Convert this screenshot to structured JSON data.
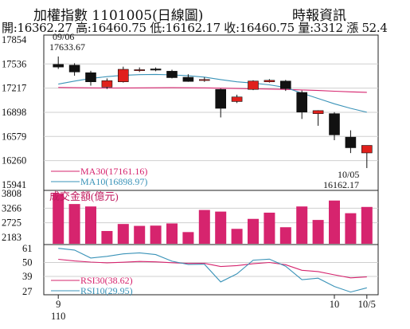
{
  "header": {
    "title": "加權指數 1101005(日線圖)",
    "source": "時報資訊",
    "summary": "開:16362.27 高:16460.75 低:16162.17 收:16460.75 量:3312 漲 52.4"
  },
  "chart_data": [
    {
      "type": "candlestick",
      "y_ticks": [
        "17854",
        "17536",
        "17217",
        "16898",
        "16579",
        "16260",
        "15941"
      ],
      "ylim": [
        15941,
        17854
      ],
      "grid": true,
      "annotations": [
        {
          "text": "09/06",
          "value": "17633.67"
        },
        {
          "text": "10/05",
          "value": "16162.17"
        }
      ],
      "candles": [
        {
          "o": 17530,
          "h": 17634,
          "l": 17470,
          "c": 17495
        },
        {
          "o": 17520,
          "h": 17545,
          "l": 17380,
          "c": 17430
        },
        {
          "o": 17420,
          "h": 17445,
          "l": 17250,
          "c": 17300
        },
        {
          "o": 17230,
          "h": 17345,
          "l": 17205,
          "c": 17315
        },
        {
          "o": 17300,
          "h": 17500,
          "l": 17290,
          "c": 17465
        },
        {
          "o": 17455,
          "h": 17490,
          "l": 17430,
          "c": 17460
        },
        {
          "o": 17470,
          "h": 17490,
          "l": 17440,
          "c": 17455
        },
        {
          "o": 17440,
          "h": 17460,
          "l": 17345,
          "c": 17355
        },
        {
          "o": 17360,
          "h": 17400,
          "l": 17300,
          "c": 17305
        },
        {
          "o": 17330,
          "h": 17360,
          "l": 17300,
          "c": 17330
        },
        {
          "o": 17200,
          "h": 17210,
          "l": 16830,
          "c": 16950
        },
        {
          "o": 17040,
          "h": 17130,
          "l": 17020,
          "c": 17100
        },
        {
          "o": 17200,
          "h": 17320,
          "l": 17190,
          "c": 17310
        },
        {
          "o": 17300,
          "h": 17335,
          "l": 17290,
          "c": 17320
        },
        {
          "o": 17310,
          "h": 17325,
          "l": 17180,
          "c": 17210
        },
        {
          "o": 17160,
          "h": 17185,
          "l": 16810,
          "c": 16900
        },
        {
          "o": 16880,
          "h": 16925,
          "l": 16720,
          "c": 16920
        },
        {
          "o": 16880,
          "h": 16900,
          "l": 16530,
          "c": 16600
        },
        {
          "o": 16570,
          "h": 16660,
          "l": 16360,
          "c": 16430
        },
        {
          "o": 16362,
          "h": 16461,
          "l": 16162,
          "c": 16461
        }
      ],
      "series": [
        {
          "name": "MA30",
          "label": "MA30(17161.16)",
          "color": "#d6246e",
          "values": [
            17225,
            17222,
            17220,
            17218,
            17219,
            17220,
            17221,
            17222,
            17221,
            17220,
            17216,
            17212,
            17208,
            17204,
            17200,
            17193,
            17185,
            17176,
            17168,
            17161
          ]
        },
        {
          "name": "MA10",
          "label": "MA10(16898.97)",
          "color": "#3a93b8",
          "values": [
            17270,
            17310,
            17345,
            17368,
            17385,
            17395,
            17398,
            17392,
            17380,
            17362,
            17330,
            17300,
            17283,
            17260,
            17225,
            17150,
            17080,
            17010,
            16950,
            16899
          ]
        }
      ]
    },
    {
      "type": "bar",
      "title": "成交金額(億元)",
      "y_ticks": [
        "3808",
        "3266",
        "2725",
        "2183"
      ],
      "ylim": [
        2183,
        3808
      ],
      "values": [
        3805,
        3420,
        3330,
        2420,
        2680,
        2610,
        2620,
        2700,
        2380,
        3200,
        3140,
        2500,
        2870,
        3100,
        2560,
        3330,
        2830,
        3550,
        3080,
        3312
      ],
      "color": "#d6246e"
    },
    {
      "type": "line",
      "y_ticks": [
        "61",
        "50",
        "39",
        "27"
      ],
      "ylim": [
        27,
        61
      ],
      "x_ticks": [
        {
          "label": "9",
          "sub": "110",
          "index": 0
        },
        {
          "label": "10",
          "index": 17
        },
        {
          "label": "10/5",
          "index": 19
        }
      ],
      "series": [
        {
          "name": "RSI30",
          "label": "RSI30(38.62)",
          "color": "#d6246e",
          "values": [
            52.5,
            51.2,
            50.3,
            49.7,
            50.2,
            50.8,
            50.5,
            49.8,
            49.2,
            49.3,
            46.8,
            47.5,
            49.0,
            50.0,
            48.2,
            43.8,
            42.8,
            40.2,
            37.8,
            38.6
          ]
        },
        {
          "name": "RSI10",
          "label": "RSI10(29.95)",
          "color": "#3a93b8",
          "values": [
            61.2,
            59.8,
            53.5,
            54.8,
            56.8,
            57.6,
            56.2,
            51.0,
            48.4,
            48.6,
            34.6,
            41.0,
            51.8,
            52.6,
            47.0,
            36.4,
            37.6,
            31.0,
            26.6,
            29.95
          ]
        }
      ]
    }
  ]
}
